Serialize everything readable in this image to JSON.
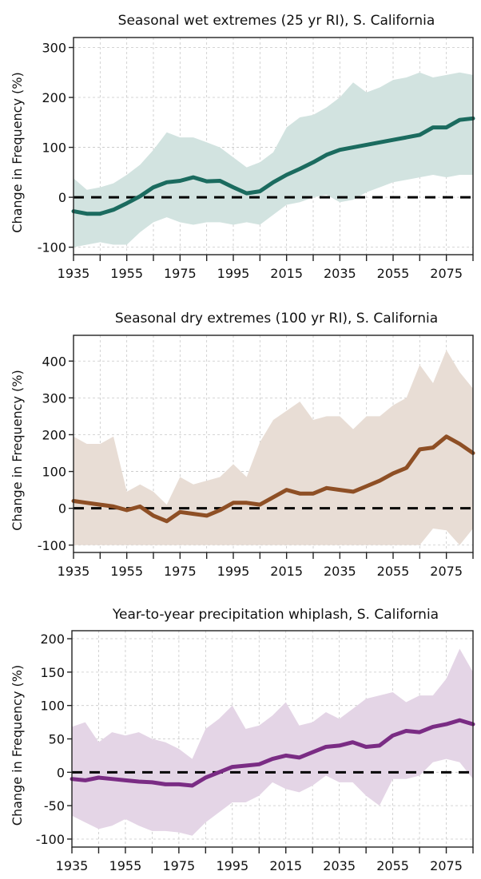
{
  "chart_data": [
    {
      "type": "area",
      "title": "Seasonal wet extremes (25 yr RI), S. California",
      "xlabel": "",
      "ylabel": "Change in Frequency (%)",
      "xlim": [
        1935,
        2085
      ],
      "ylim": [
        -115,
        320
      ],
      "xticks": [
        1935,
        1945,
        1955,
        1965,
        1975,
        1985,
        1995,
        2005,
        2015,
        2025,
        2035,
        2045,
        2055,
        2065,
        2075,
        2085
      ],
      "xtick_labels": [
        "1935",
        "1955",
        "1975",
        "1995",
        "2015",
        "2035",
        "2055",
        "2075"
      ],
      "yticks": [
        -100,
        0,
        100,
        200,
        300
      ],
      "grid": true,
      "reference_line": 0,
      "colors": {
        "line": "#1b6b5f",
        "band": "#d2e3e0"
      },
      "x": [
        1935,
        1940,
        1945,
        1950,
        1955,
        1960,
        1965,
        1970,
        1975,
        1980,
        1985,
        1990,
        1995,
        2000,
        2005,
        2010,
        2015,
        2020,
        2025,
        2030,
        2035,
        2040,
        2045,
        2050,
        2055,
        2060,
        2065,
        2070,
        2075,
        2080,
        2085
      ],
      "series": [
        {
          "name": "mean",
          "values": [
            -28,
            -33,
            -33,
            -25,
            -12,
            2,
            20,
            30,
            33,
            40,
            32,
            33,
            20,
            8,
            12,
            30,
            45,
            57,
            70,
            85,
            95,
            100,
            105,
            110,
            115,
            120,
            125,
            140,
            140,
            155,
            158
          ]
        },
        {
          "name": "upper",
          "values": [
            38,
            15,
            20,
            28,
            45,
            65,
            95,
            130,
            120,
            120,
            110,
            100,
            80,
            60,
            70,
            90,
            140,
            160,
            165,
            180,
            200,
            230,
            210,
            220,
            235,
            240,
            250,
            240,
            245,
            250,
            245
          ]
        },
        {
          "name": "lower",
          "values": [
            -100,
            -95,
            -90,
            -95,
            -95,
            -70,
            -50,
            -40,
            -50,
            -55,
            -50,
            -50,
            -55,
            -50,
            -55,
            -35,
            -15,
            -10,
            0,
            5,
            -10,
            -5,
            10,
            20,
            30,
            35,
            40,
            45,
            40,
            45,
            45
          ]
        }
      ]
    },
    {
      "type": "area",
      "title": "Seasonal dry extremes (100 yr RI), S. California",
      "xlabel": "",
      "ylabel": "Change in Frequency (%)",
      "xlim": [
        1935,
        2085
      ],
      "ylim": [
        -120,
        470
      ],
      "xticks": [
        1935,
        1945,
        1955,
        1965,
        1975,
        1985,
        1995,
        2005,
        2015,
        2025,
        2035,
        2045,
        2055,
        2065,
        2075,
        2085
      ],
      "xtick_labels": [
        "1935",
        "1955",
        "1975",
        "1995",
        "2015",
        "2035",
        "2055",
        "2075"
      ],
      "yticks": [
        -100,
        0,
        100,
        200,
        300,
        400
      ],
      "grid": true,
      "reference_line": 0,
      "colors": {
        "line": "#8e4f25",
        "band": "#e8ddd5"
      },
      "x": [
        1935,
        1940,
        1945,
        1950,
        1955,
        1960,
        1965,
        1970,
        1975,
        1980,
        1985,
        1990,
        1995,
        2000,
        2005,
        2010,
        2015,
        2020,
        2025,
        2030,
        2035,
        2040,
        2045,
        2050,
        2055,
        2060,
        2065,
        2070,
        2075,
        2080,
        2085
      ],
      "series": [
        {
          "name": "mean",
          "values": [
            20,
            15,
            10,
            5,
            -5,
            5,
            -20,
            -35,
            -10,
            -15,
            -20,
            -5,
            15,
            15,
            10,
            30,
            50,
            40,
            40,
            55,
            50,
            45,
            60,
            75,
            95,
            110,
            160,
            165,
            195,
            175,
            150
          ]
        },
        {
          "name": "upper",
          "values": [
            195,
            175,
            175,
            195,
            45,
            65,
            45,
            10,
            85,
            65,
            75,
            85,
            120,
            85,
            180,
            240,
            265,
            290,
            240,
            250,
            250,
            215,
            250,
            250,
            280,
            300,
            390,
            340,
            430,
            370,
            325
          ]
        },
        {
          "name": "lower",
          "values": [
            -100,
            -100,
            -100,
            -100,
            -100,
            -100,
            -100,
            -100,
            -100,
            -100,
            -100,
            -100,
            -100,
            -100,
            -100,
            -100,
            -100,
            -100,
            -100,
            -100,
            -100,
            -100,
            -100,
            -100,
            -100,
            -100,
            -100,
            -55,
            -60,
            -100,
            -55
          ]
        }
      ]
    },
    {
      "type": "area",
      "title": "Year-to-year precipitation whiplash, S. California",
      "xlabel": "",
      "ylabel": "Change in Frequency (%)",
      "xlim": [
        1935,
        2085
      ],
      "ylim": [
        -112,
        212
      ],
      "xticks": [
        1935,
        1945,
        1955,
        1965,
        1975,
        1985,
        1995,
        2005,
        2015,
        2025,
        2035,
        2045,
        2055,
        2065,
        2075,
        2085
      ],
      "xtick_labels": [
        "1935",
        "1955",
        "1975",
        "1995",
        "2015",
        "2035",
        "2055",
        "2075"
      ],
      "yticks": [
        -100,
        -50,
        0,
        50,
        100,
        150,
        200
      ],
      "grid": true,
      "reference_line": 0,
      "colors": {
        "line": "#7a2c84",
        "band": "#e4d5e6"
      },
      "x": [
        1935,
        1940,
        1945,
        1950,
        1955,
        1960,
        1965,
        1970,
        1975,
        1980,
        1985,
        1990,
        1995,
        2000,
        2005,
        2010,
        2015,
        2020,
        2025,
        2030,
        2035,
        2040,
        2045,
        2050,
        2055,
        2060,
        2065,
        2070,
        2075,
        2080,
        2085
      ],
      "series": [
        {
          "name": "mean",
          "values": [
            -10,
            -12,
            -8,
            -10,
            -12,
            -14,
            -15,
            -18,
            -18,
            -20,
            -8,
            0,
            8,
            10,
            12,
            20,
            25,
            22,
            30,
            38,
            40,
            45,
            38,
            40,
            55,
            62,
            60,
            68,
            72,
            78,
            72
          ]
        },
        {
          "name": "upper",
          "values": [
            68,
            75,
            45,
            60,
            55,
            60,
            50,
            45,
            35,
            20,
            65,
            80,
            100,
            65,
            70,
            85,
            105,
            70,
            75,
            90,
            80,
            95,
            110,
            115,
            120,
            105,
            115,
            115,
            140,
            185,
            150
          ]
        },
        {
          "name": "lower",
          "values": [
            -65,
            -75,
            -85,
            -80,
            -70,
            -80,
            -88,
            -88,
            -90,
            -95,
            -75,
            -60,
            -45,
            -45,
            -35,
            -15,
            -25,
            -30,
            -20,
            -5,
            -15,
            -15,
            -35,
            -50,
            -10,
            -10,
            -5,
            15,
            20,
            15,
            -10
          ]
        }
      ]
    }
  ]
}
